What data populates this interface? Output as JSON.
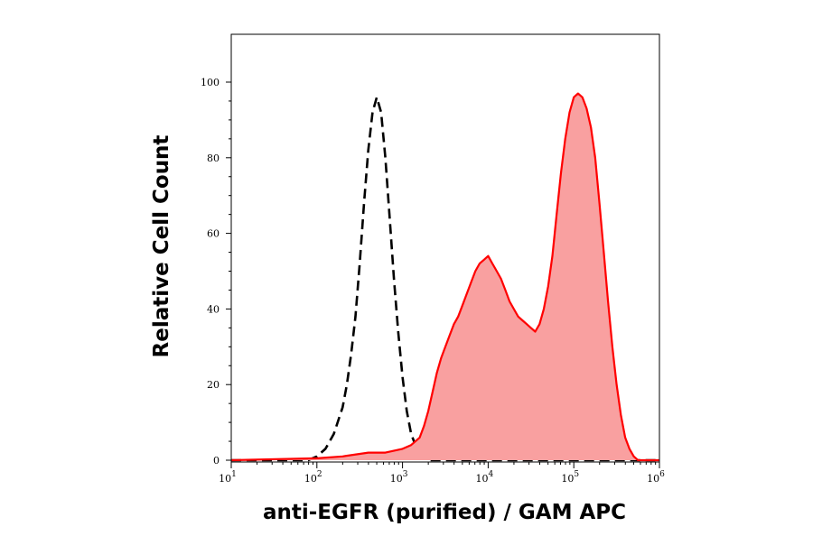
{
  "chart_data": {
    "type": "area",
    "xlabel": "anti-EGFR (purified) / GAM APC",
    "ylabel": "Relative Cell Count",
    "x_scale": "log10",
    "xlim": [
      10,
      1000000
    ],
    "ylim": [
      0,
      100
    ],
    "x_ticks": [
      {
        "base": "10",
        "exp": "1",
        "value": 10
      },
      {
        "base": "10",
        "exp": "2",
        "value": 100
      },
      {
        "base": "10",
        "exp": "3",
        "value": 1000
      },
      {
        "base": "10",
        "exp": "4",
        "value": 10000
      },
      {
        "base": "10",
        "exp": "5",
        "value": 100000
      },
      {
        "base": "10",
        "exp": "6",
        "value": 1000000
      }
    ],
    "y_ticks": [
      "0",
      "20",
      "40",
      "60",
      "80",
      "100"
    ],
    "grid": false,
    "series": [
      {
        "style": "dashed-outline",
        "color": "#000000",
        "points": [
          [
            10,
            0
          ],
          [
            79,
            0
          ],
          [
            100,
            1
          ],
          [
            126,
            3
          ],
          [
            158,
            7
          ],
          [
            200,
            14
          ],
          [
            224,
            20
          ],
          [
            251,
            28
          ],
          [
            282,
            38
          ],
          [
            316,
            52
          ],
          [
            355,
            68
          ],
          [
            398,
            82
          ],
          [
            447,
            92
          ],
          [
            501,
            96
          ],
          [
            562,
            92
          ],
          [
            631,
            80
          ],
          [
            708,
            64
          ],
          [
            794,
            48
          ],
          [
            891,
            34
          ],
          [
            1000,
            22
          ],
          [
            1122,
            13
          ],
          [
            1259,
            7
          ],
          [
            1413,
            4
          ],
          [
            1585,
            2
          ],
          [
            1778,
            1
          ],
          [
            2000,
            0
          ],
          [
            1000000,
            0
          ]
        ]
      },
      {
        "style": "filled",
        "color": "#ff0000",
        "fill": "#f9a0a0",
        "points": [
          [
            10,
            0
          ],
          [
            100,
            0.5
          ],
          [
            200,
            1
          ],
          [
            398,
            2
          ],
          [
            631,
            2
          ],
          [
            1000,
            3
          ],
          [
            1259,
            4
          ],
          [
            1585,
            6
          ],
          [
            1778,
            9
          ],
          [
            2000,
            13
          ],
          [
            2239,
            18
          ],
          [
            2512,
            23
          ],
          [
            2818,
            27
          ],
          [
            3162,
            30
          ],
          [
            3548,
            33
          ],
          [
            3981,
            36
          ],
          [
            4467,
            38
          ],
          [
            5012,
            41
          ],
          [
            5623,
            44
          ],
          [
            6310,
            47
          ],
          [
            7079,
            50
          ],
          [
            7943,
            52
          ],
          [
            8913,
            53
          ],
          [
            10000,
            54
          ],
          [
            11220,
            52
          ],
          [
            12589,
            50
          ],
          [
            14125,
            48
          ],
          [
            15849,
            45
          ],
          [
            17783,
            42
          ],
          [
            19953,
            40
          ],
          [
            22387,
            38
          ],
          [
            25119,
            37
          ],
          [
            28184,
            36
          ],
          [
            31623,
            35
          ],
          [
            35481,
            34
          ],
          [
            39811,
            36
          ],
          [
            44668,
            40
          ],
          [
            50119,
            46
          ],
          [
            56234,
            54
          ],
          [
            63096,
            65
          ],
          [
            70795,
            76
          ],
          [
            79433,
            85
          ],
          [
            89125,
            92
          ],
          [
            100000,
            96
          ],
          [
            112202,
            97
          ],
          [
            125893,
            96
          ],
          [
            141254,
            93
          ],
          [
            158489,
            88
          ],
          [
            177828,
            80
          ],
          [
            199526,
            68
          ],
          [
            223872,
            55
          ],
          [
            251189,
            42
          ],
          [
            281838,
            30
          ],
          [
            316228,
            20
          ],
          [
            354813,
            12
          ],
          [
            398107,
            6
          ],
          [
            446684,
            3
          ],
          [
            501187,
            1
          ],
          [
            562341,
            0
          ],
          [
            1000000,
            0
          ]
        ]
      }
    ]
  }
}
